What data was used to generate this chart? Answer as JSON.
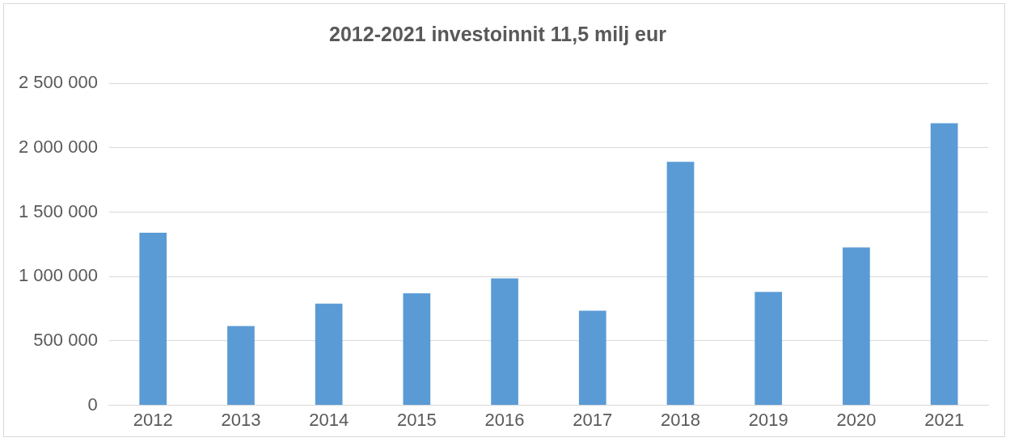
{
  "chart_data": {
    "type": "bar",
    "title": "2012-2021 investoinnit 11,5 milj eur",
    "categories": [
      "2012",
      "2013",
      "2014",
      "2015",
      "2016",
      "2017",
      "2018",
      "2019",
      "2020",
      "2021"
    ],
    "values": [
      1340000,
      615000,
      790000,
      870000,
      985000,
      735000,
      1890000,
      880000,
      1225000,
      2190000
    ],
    "color": "#5b9bd5",
    "ylim": [
      0,
      2500000
    ],
    "yticks": [
      {
        "value": 0,
        "label": "0"
      },
      {
        "value": 500000,
        "label": "500 000"
      },
      {
        "value": 1000000,
        "label": "1 000 000"
      },
      {
        "value": 1500000,
        "label": "1 500 000"
      },
      {
        "value": 2000000,
        "label": "2 000 000"
      },
      {
        "value": 2500000,
        "label": "2 500 000"
      }
    ],
    "grid": "y",
    "legend": false
  }
}
